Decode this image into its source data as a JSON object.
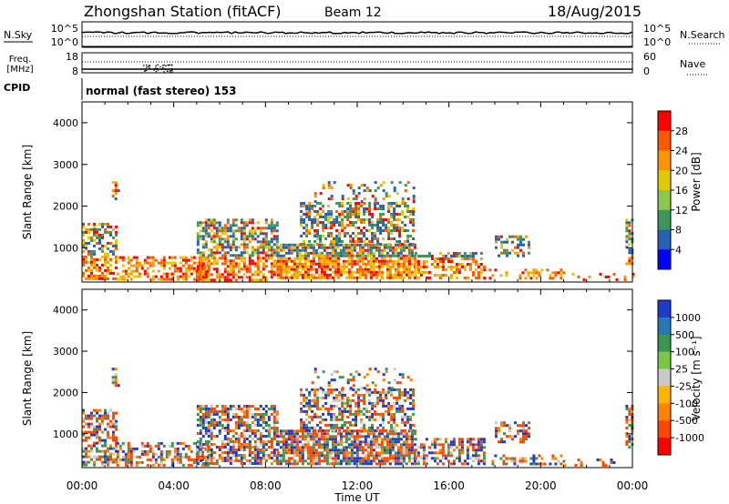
{
  "header": {
    "station": "Zhongshan Station (fitACF)",
    "beam": "Beam 12",
    "date": "18/Aug/2015"
  },
  "nsky_panel": {
    "left_label": "N.Sky",
    "right_label": "N.Search",
    "left_ticks": [
      "10^5",
      "10^0"
    ],
    "right_ticks": [
      "10^5",
      "10^0"
    ]
  },
  "freq_panel": {
    "left_label_line1": "Freq.",
    "left_label_line2": "[MHz]",
    "right_label": "Nave",
    "left_ticks": [
      "18",
      "8"
    ],
    "right_ticks": [
      "60",
      "0"
    ]
  },
  "cpid_label": "CPID",
  "cpid_value": "normal (fast stereo) 153",
  "chart_data": [
    {
      "type": "heatmap",
      "name": "power",
      "ylabel": "Slant Range [km]",
      "xlabel": "",
      "yticks": [
        1000,
        2000,
        3000,
        4000
      ],
      "ylim": [
        180,
        4500
      ],
      "colorbar_label": "Power [dB]",
      "colorbar_ticks": [
        "28",
        "24",
        "20",
        "16",
        "12",
        "8",
        "4"
      ],
      "colorbar_colors": [
        "#ff0000",
        "#ff5a00",
        "#ff9600",
        "#e1c800",
        "#8cc850",
        "#3c965a",
        "#2860b4",
        "#0000ff"
      ]
    },
    {
      "type": "heatmap",
      "name": "velocity",
      "ylabel": "Slant Range [km]",
      "xlabel": "Time UT",
      "xticks": [
        "00:00",
        "04:00",
        "08:00",
        "12:00",
        "16:00",
        "20:00",
        "00:00"
      ],
      "xlim_hours": [
        0,
        24
      ],
      "yticks": [
        1000,
        2000,
        3000,
        4000
      ],
      "ylim": [
        180,
        4500
      ],
      "colorbar_label": "Velocity [m s⁻¹]",
      "colorbar_ticks": [
        "1000",
        "500",
        "100",
        "25",
        "-25",
        "-100",
        "-500",
        "-1000"
      ],
      "colorbar_colors": [
        "#1e3cc8",
        "#2878b4",
        "#3c9650",
        "#78c846",
        "#c8c8c8",
        "#ffb400",
        "#ff8200",
        "#ff4600",
        "#ff0000"
      ]
    }
  ]
}
